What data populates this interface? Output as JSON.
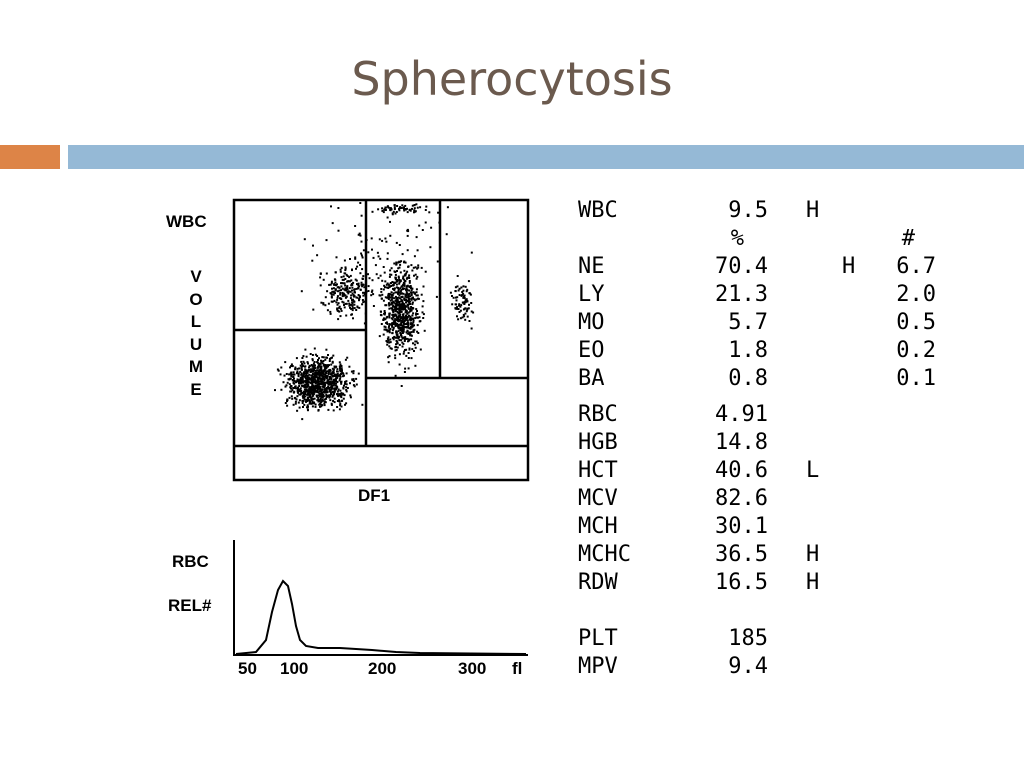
{
  "slide": {
    "title": "Spherocytosis"
  },
  "scatter": {
    "y_label": "WBC",
    "volume_letters": [
      "V",
      "O",
      "L",
      "U",
      "M",
      "E"
    ],
    "x_label": "DF1"
  },
  "histogram": {
    "y_label_1": "RBC",
    "y_label_2": "REL#",
    "ticks": [
      "50",
      "100",
      "200",
      "300"
    ],
    "unit": "fl"
  },
  "results": {
    "wbc": {
      "name": "WBC",
      "value": "9.5",
      "flag": "H"
    },
    "header": {
      "pct": "%",
      "abs": "#"
    },
    "diff": [
      {
        "name": "NE",
        "pct": "70.4",
        "flag": "H",
        "abs": "6.7"
      },
      {
        "name": "LY",
        "pct": "21.3",
        "flag": "",
        "abs": "2.0"
      },
      {
        "name": "MO",
        "pct": "5.7",
        "flag": "",
        "abs": "0.5"
      },
      {
        "name": "EO",
        "pct": "1.8",
        "flag": "",
        "abs": "0.2"
      },
      {
        "name": "BA",
        "pct": "0.8",
        "flag": "",
        "abs": "0.1"
      }
    ],
    "rbc": [
      {
        "name": "RBC",
        "value": "4.91",
        "flag": ""
      },
      {
        "name": "HGB",
        "value": "14.8",
        "flag": ""
      },
      {
        "name": "HCT",
        "value": "40.6",
        "flag": "L"
      },
      {
        "name": "MCV",
        "value": "82.6",
        "flag": ""
      },
      {
        "name": "MCH",
        "value": "30.1",
        "flag": ""
      },
      {
        "name": "MCHC",
        "value": "36.5",
        "flag": "H"
      },
      {
        "name": "RDW",
        "value": "16.5",
        "flag": "H"
      }
    ],
    "plt": [
      {
        "name": "PLT",
        "value": "185",
        "flag": ""
      },
      {
        "name": "MPV",
        "value": "9.4",
        "flag": ""
      }
    ]
  }
}
